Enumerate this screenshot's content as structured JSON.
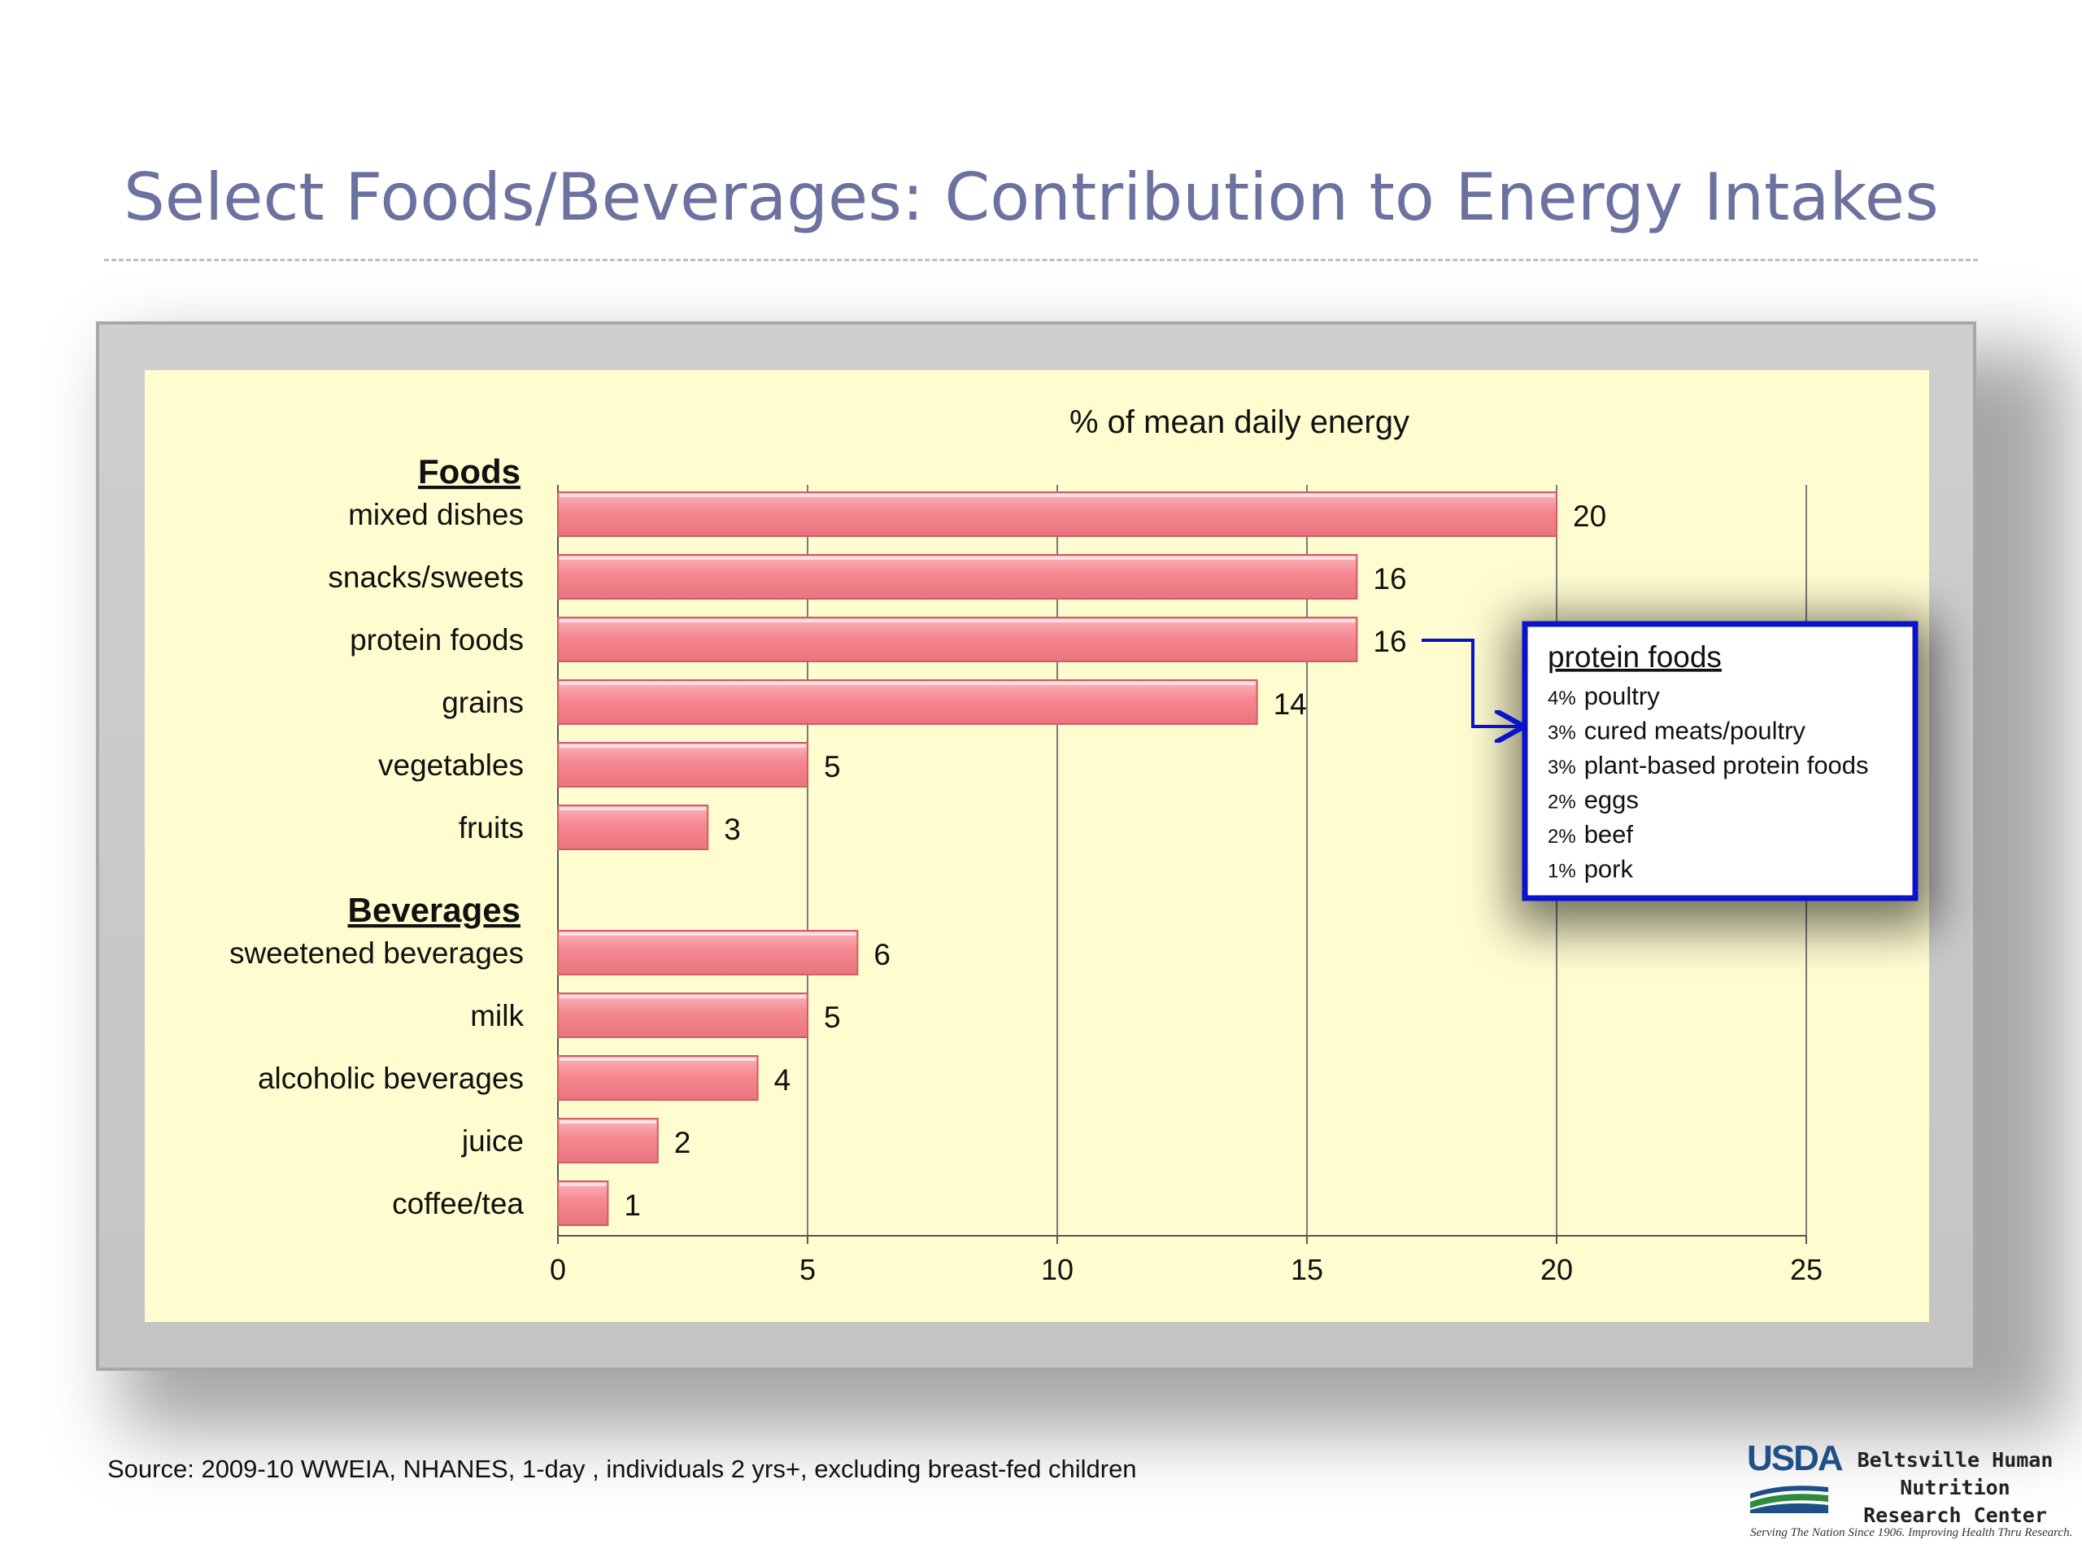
{
  "slide": {
    "title": "Select Foods/Beverages:   Contribution to Energy Intakes",
    "source": "Source:  2009-10 WWEIA, NHANES, 1-day , individuals 2 yrs+, excluding breast-fed children"
  },
  "logo": {
    "mark": "USDA",
    "name_line1": "Beltsville Human Nutrition",
    "name_line2": "Research Center",
    "tagline": "Serving The Nation Since 1906. Improving Health Thru Research."
  },
  "colors": {
    "bar_fill": "#f58790",
    "bar_edge": "#d15a64",
    "plot_bg": "#fffdd0",
    "callout_border": "#0b13c9",
    "title": "#6b72a0"
  },
  "chart_data": {
    "type": "bar",
    "orientation": "horizontal",
    "title": "% of mean daily energy",
    "xlim": [
      0,
      25
    ],
    "xticks": [
      0,
      5,
      10,
      15,
      20,
      25
    ],
    "grid": true,
    "groups": [
      {
        "name": "Foods",
        "categories": [
          "mixed dishes",
          "snacks/sweets",
          "protein foods",
          "grains",
          "vegetables",
          "fruits"
        ],
        "values": [
          20,
          16,
          16,
          14,
          5,
          3
        ]
      },
      {
        "name": "Beverages",
        "categories": [
          "sweetened beverages",
          "milk",
          "alcoholic beverages",
          "juice",
          "coffee/tea"
        ],
        "values": [
          6,
          5,
          4,
          2,
          1
        ]
      }
    ],
    "callout": {
      "target": "protein foods",
      "title": "protein foods",
      "items": [
        {
          "pct": "4%",
          "label": "poultry"
        },
        {
          "pct": "3%",
          "label": "cured meats/poultry"
        },
        {
          "pct": "3%",
          "label": "plant-based protein foods"
        },
        {
          "pct": "2%",
          "label": "eggs"
        },
        {
          "pct": "2%",
          "label": "beef"
        },
        {
          "pct": "1%",
          "label": "pork"
        }
      ]
    }
  }
}
